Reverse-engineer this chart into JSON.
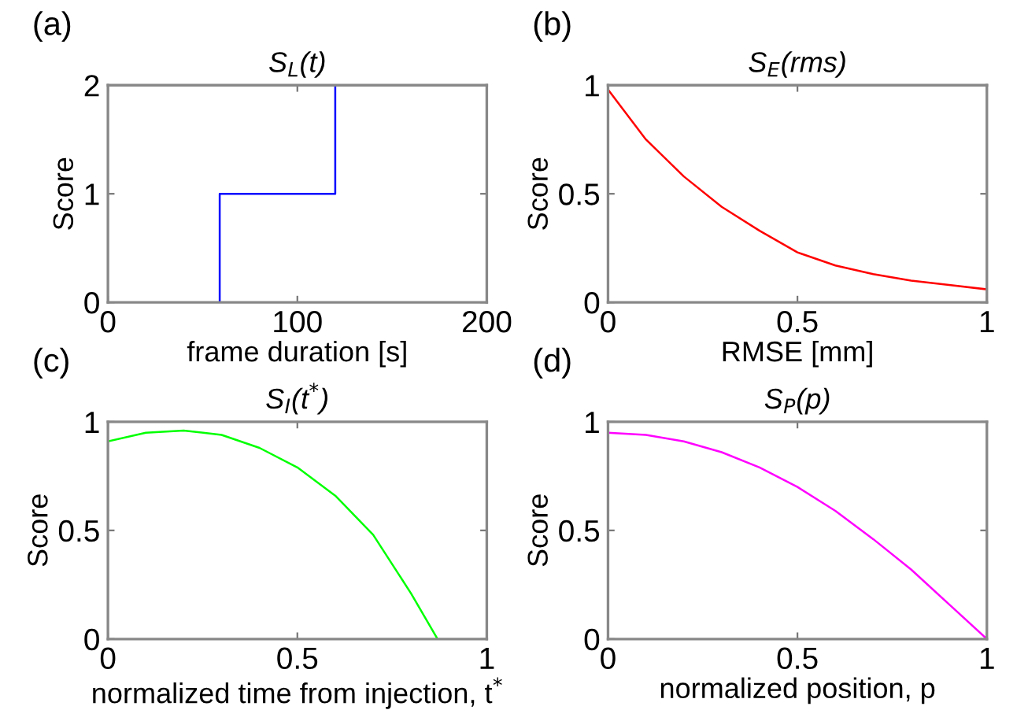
{
  "chart_data": [
    {
      "type": "line",
      "title": "S$_{L}$(t)",
      "xlabel": "frame duration [s]",
      "ylabel": "Score",
      "annotations": [
        "(a)"
      ],
      "series": [
        {
          "color": "#0000ff",
          "x": [
            59,
            59,
            120,
            120
          ],
          "values": [
            0,
            1,
            1,
            2
          ]
        }
      ],
      "xlim": [
        0,
        200
      ],
      "ylim": [
        0,
        2
      ],
      "xticks": [
        0,
        100,
        200
      ],
      "yticks": [
        0,
        1,
        2
      ],
      "grid": false,
      "legend": false
    },
    {
      "type": "line",
      "title": "S$_{E}$(rms)",
      "xlabel": "RMSE [mm]",
      "ylabel": "Score",
      "annotations": [
        "(b)"
      ],
      "series": [
        {
          "color": "#ff0000",
          "x": [
            0,
            0.1,
            0.2,
            0.3,
            0.4,
            0.5,
            0.6,
            0.7,
            0.8,
            0.9,
            1.0
          ],
          "values": [
            0.98,
            0.75,
            0.58,
            0.44,
            0.33,
            0.23,
            0.17,
            0.13,
            0.1,
            0.08,
            0.06
          ]
        }
      ],
      "xlim": [
        0,
        1
      ],
      "ylim": [
        0,
        1
      ],
      "xticks": [
        0,
        0.5,
        1
      ],
      "yticks": [
        0,
        0.5,
        1
      ],
      "grid": false,
      "legend": false
    },
    {
      "type": "line",
      "title": "S$_{I}$(t$^{*}$)",
      "xlabel": "normalized time from injection, t$^{*}$",
      "ylabel": "Score",
      "annotations": [
        "(c)"
      ],
      "series": [
        {
          "color": "#00ff00",
          "x": [
            0,
            0.1,
            0.2,
            0.3,
            0.4,
            0.5,
            0.6,
            0.7,
            0.8,
            0.87
          ],
          "values": [
            0.91,
            0.95,
            0.96,
            0.94,
            0.88,
            0.79,
            0.66,
            0.48,
            0.21,
            0
          ]
        }
      ],
      "xlim": [
        0,
        1
      ],
      "ylim": [
        0,
        1
      ],
      "xticks": [
        0,
        0.5,
        1
      ],
      "yticks": [
        0,
        0.5,
        1
      ],
      "grid": false,
      "legend": false
    },
    {
      "type": "line",
      "title": "S$_{P}$(p)",
      "xlabel": "normalized position, p",
      "ylabel": "Score",
      "annotations": [
        "(d)"
      ],
      "series": [
        {
          "color": "#ff00ff",
          "x": [
            0,
            0.1,
            0.2,
            0.3,
            0.4,
            0.5,
            0.6,
            0.7,
            0.8,
            0.9,
            1.0
          ],
          "values": [
            0.95,
            0.94,
            0.91,
            0.86,
            0.79,
            0.7,
            0.59,
            0.46,
            0.32,
            0.16,
            0
          ]
        }
      ],
      "xlim": [
        0,
        1
      ],
      "ylim": [
        0,
        1
      ],
      "xticks": [
        0,
        0.5,
        1
      ],
      "yticks": [
        0,
        0.5,
        1
      ],
      "grid": false,
      "legend": false
    }
  ]
}
